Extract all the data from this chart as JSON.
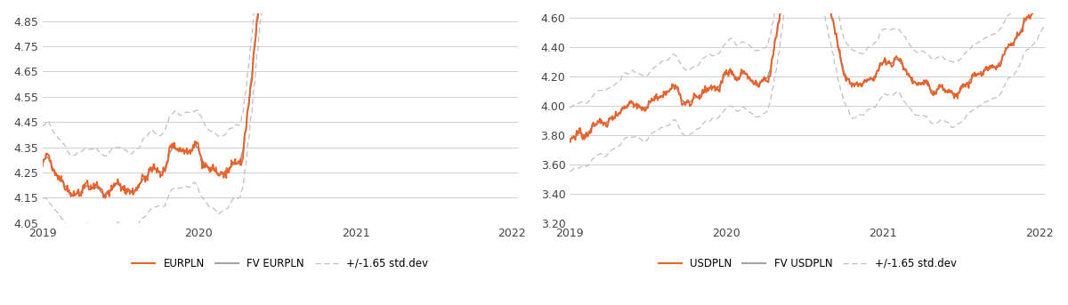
{
  "left_ylim": [
    4.05,
    4.88
  ],
  "left_yticks": [
    4.05,
    4.15,
    4.25,
    4.35,
    4.45,
    4.55,
    4.65,
    4.75,
    4.85
  ],
  "right_ylim": [
    3.2,
    4.63
  ],
  "right_yticks": [
    3.2,
    3.4,
    3.6,
    3.8,
    4.0,
    4.2,
    4.4,
    4.6
  ],
  "color_orange": "#E8622A",
  "color_gray": "#A0A0A0",
  "color_dashed": "#C0C0C0",
  "legend_left": [
    "EURPLN",
    "FV EURPLN",
    "+/-1.65 std.dev"
  ],
  "legend_right": [
    "USDPLN",
    "FV USDPLN",
    "+/-1.65 std.dev"
  ],
  "bg_color": "#FFFFFF",
  "grid_color": "#D0D0D0"
}
